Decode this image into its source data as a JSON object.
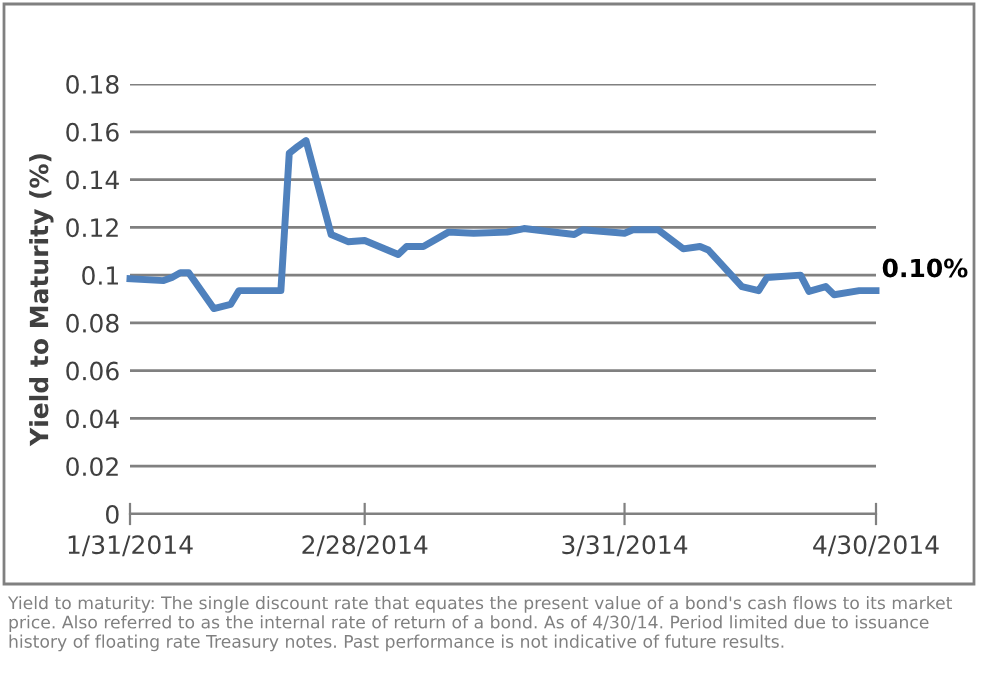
{
  "chart_data": {
    "type": "line",
    "ylabel": "Yield to Maturity (%)",
    "x": [
      "2014-01-31",
      "2014-02-04",
      "2014-02-05",
      "2014-02-06",
      "2014-02-07",
      "2014-02-10",
      "2014-02-12",
      "2014-02-13",
      "2014-02-18",
      "2014-02-19",
      "2014-02-20",
      "2014-02-21",
      "2014-02-24",
      "2014-02-26",
      "2014-02-28",
      "2014-03-04",
      "2014-03-05",
      "2014-03-07",
      "2014-03-10",
      "2014-03-13",
      "2014-03-17",
      "2014-03-19",
      "2014-03-25",
      "2014-03-26",
      "2014-03-31",
      "2014-04-01",
      "2014-04-04",
      "2014-04-07",
      "2014-04-09",
      "2014-04-10",
      "2014-04-14",
      "2014-04-16",
      "2014-04-17",
      "2014-04-21",
      "2014-04-22",
      "2014-04-24",
      "2014-04-25",
      "2014-04-28",
      "2014-04-30"
    ],
    "series": [
      {
        "color": "#4f81bd",
        "values": [
          0.0985,
          0.0977,
          0.099,
          0.101,
          0.101,
          0.086,
          0.0877,
          0.0935,
          0.0935,
          0.151,
          0.1538,
          0.1563,
          0.117,
          0.114,
          0.1145,
          0.1086,
          0.112,
          0.112,
          0.118,
          0.1175,
          0.118,
          0.1195,
          0.117,
          0.119,
          0.1175,
          0.119,
          0.119,
          0.111,
          0.112,
          0.1105,
          0.0952,
          0.0935,
          0.099,
          0.1,
          0.0932,
          0.0952,
          0.0918,
          0.0935,
          0.0935
        ]
      }
    ],
    "annotations": [
      {
        "text": "0.10%",
        "x": "2014-04-30",
        "y": 0.0935
      },
      "Yield to maturity: The single discount rate that equates the present value of a bond's cash flows to its market price. Also referred to as the internal rate of return of a bond. As of 4/30/14. Period limited due to issuance history of floating rate Treasury notes. Past performance is not indicative of future results."
    ],
    "xlim": [
      "2014-01-31",
      "2014-04-30"
    ],
    "xticks": [
      {
        "value": "2014-01-31",
        "label": "1/31/2014"
      },
      {
        "value": "2014-02-28",
        "label": "2/28/2014"
      },
      {
        "value": "2014-03-31",
        "label": "3/31/2014"
      },
      {
        "value": "2014-04-30",
        "label": "4/30/2014"
      }
    ],
    "ylim": [
      0,
      0.18
    ],
    "yticks": [
      0,
      0.02,
      0.04,
      0.06,
      0.08,
      0.1,
      0.12,
      0.14,
      0.16,
      0.18
    ],
    "grid": "y",
    "marker": "none",
    "line_style": "solid"
  }
}
